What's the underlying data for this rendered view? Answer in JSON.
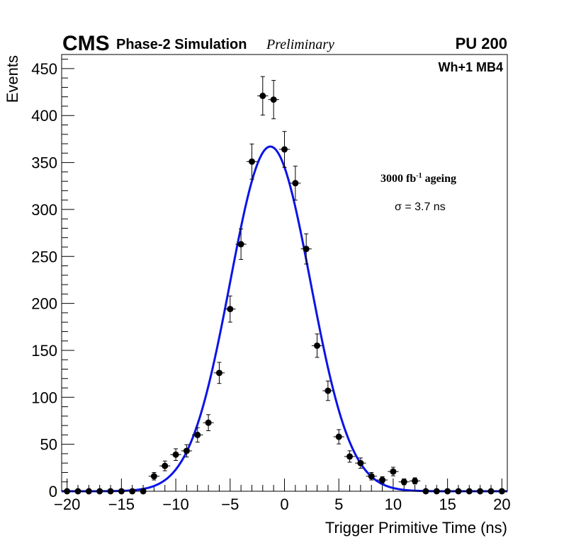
{
  "colors": {
    "frame": "#000000",
    "points": "#000000",
    "fit_curve": "#0a14e6",
    "background": "#ffffff"
  },
  "header": {
    "experiment": "CMS",
    "subtitle": "Phase-2 Simulation",
    "status": "Preliminary",
    "pileup": "PU 200"
  },
  "annotations": {
    "station": "Wh+1 MB4",
    "ageing_prefix": "3000 fb",
    "ageing_exponent": "-1",
    "ageing_suffix": " ageing",
    "sigma": "σ = 3.7 ns"
  },
  "chart_data": {
    "type": "scatter",
    "title": "",
    "xlabel": "Trigger Primitive Time (ns)",
    "ylabel": "Events",
    "xlim": [
      -20.5,
      20.5
    ],
    "ylim": [
      0,
      465
    ],
    "x_ticks": [
      -20,
      -15,
      -10,
      -5,
      0,
      5,
      10,
      15,
      20
    ],
    "x_tick_labels": [
      "−20",
      "−15",
      "−10",
      "−5",
      "0",
      "5",
      "10",
      "15",
      "20"
    ],
    "y_ticks": [
      0,
      50,
      100,
      150,
      200,
      250,
      300,
      350,
      400,
      450
    ],
    "y_tick_labels": [
      "0",
      "50",
      "100",
      "150",
      "200",
      "250",
      "300",
      "350",
      "400",
      "450"
    ],
    "bin_half_width": 0.5,
    "series": [
      {
        "name": "Simulation",
        "style": "points-with-errors",
        "x": [
          -20,
          -19,
          -18,
          -17,
          -16,
          -15,
          -14,
          -13,
          -12,
          -11,
          -10,
          -9,
          -8,
          -7,
          -6,
          -5,
          -4,
          -3,
          -2,
          -1,
          0,
          1,
          2,
          3,
          4,
          5,
          6,
          7,
          8,
          9,
          10,
          11,
          12,
          13,
          14,
          15,
          16,
          17,
          18,
          19,
          20
        ],
        "y": [
          0,
          0,
          0,
          0,
          0,
          0,
          0,
          0,
          16,
          27,
          39,
          43,
          60,
          73,
          126,
          194,
          263,
          351,
          421,
          417,
          364,
          328,
          258,
          155,
          107,
          58,
          37,
          30,
          16,
          12,
          21,
          10,
          11,
          0,
          0,
          0,
          0,
          0,
          0,
          0,
          0
        ]
      },
      {
        "name": "Gaussian fit",
        "style": "line",
        "function": "gaussian",
        "amplitude": 367,
        "mean": -1.3,
        "sigma": 3.7
      }
    ]
  }
}
